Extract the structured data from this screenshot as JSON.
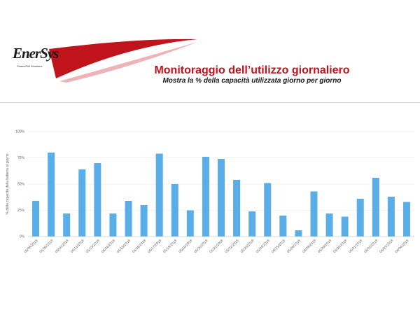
{
  "brand": {
    "logo": "EnerSys",
    "tagline": "Power/Full Solutions"
  },
  "header": {
    "title": "Monitoraggio dell’utilizzo giornaliero",
    "subtitle": "Mostra la % della capacità utilizzata giorno per giorno"
  },
  "colors": {
    "bar": "#5aaee8",
    "title": "#c0141c",
    "swoosh": "#c0141c"
  },
  "chart_data": {
    "type": "bar",
    "ylabel": "% della capacità della batteria al giorno",
    "ylim": [
      0,
      100
    ],
    "yticks": [
      "0%",
      "25%",
      "50%",
      "75%",
      "100%"
    ],
    "grid": true,
    "categories": [
      "05/08/2018",
      "05/09/2018",
      "05/10/2018",
      "05/11/2018",
      "05/13/2018",
      "05/14/2018",
      "05/15/2018",
      "05/16/2018",
      "05/17/2018",
      "05/18/2018",
      "05/19/2018",
      "05/20/2018",
      "05/21/2018",
      "05/22/2018",
      "05/23/2018",
      "05/24/2018",
      "05/25/2018",
      "05/26/2018",
      "05/28/2018",
      "05/29/2018",
      "05/30/2018",
      "05/31/2018",
      "06/02/2018",
      "06/03/2018",
      "06/04/2018"
    ],
    "values": [
      34,
      80,
      22,
      64,
      70,
      22,
      34,
      30,
      79,
      50,
      25,
      76,
      74,
      54,
      24,
      51,
      20,
      6,
      43,
      22,
      19,
      36,
      56,
      38,
      33
    ]
  }
}
